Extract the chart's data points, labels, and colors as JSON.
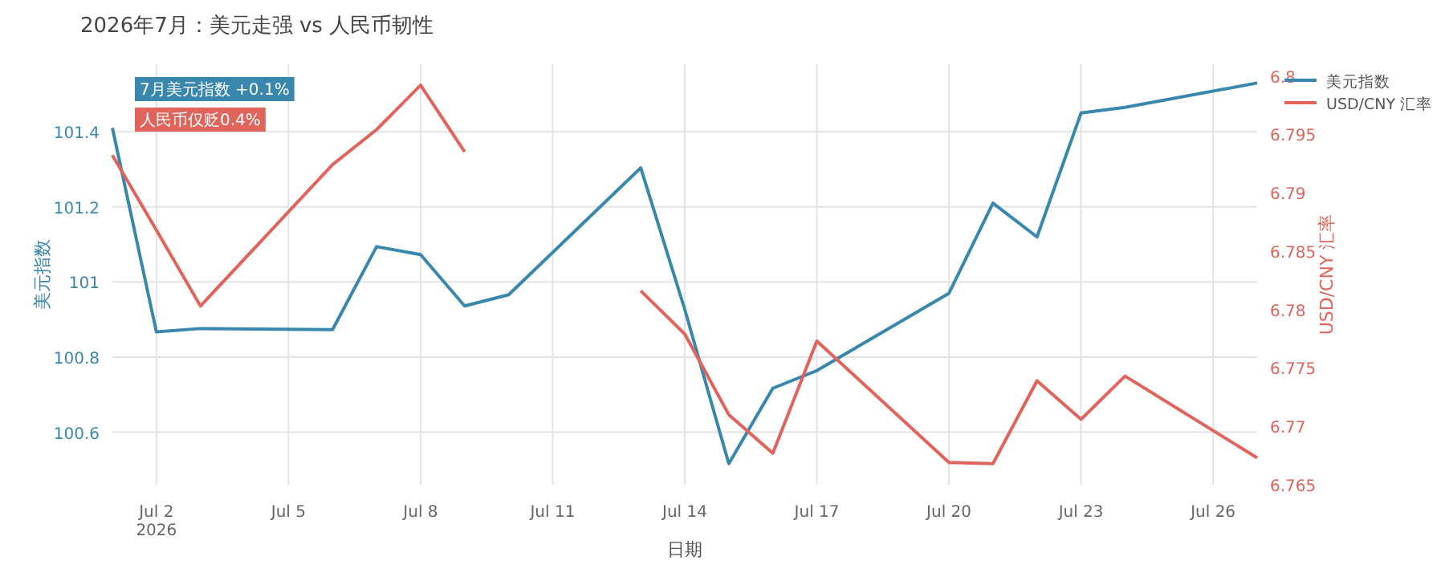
{
  "chart_data": {
    "type": "line",
    "title": "2026年7月：美元走强 vs 人民币韧性",
    "xlabel": "日期",
    "ylabel": "美元指数",
    "y2label": "USD/CNY 汇率",
    "x": [
      "2026-07-01",
      "2026-07-02",
      "2026-07-03",
      "2026-07-06",
      "2026-07-07",
      "2026-07-08",
      "2026-07-09",
      "2026-07-10",
      "2026-07-13",
      "2026-07-14",
      "2026-07-15",
      "2026-07-16",
      "2026-07-17",
      "2026-07-20",
      "2026-07-21",
      "2026-07-22",
      "2026-07-23",
      "2026-07-24",
      "2026-07-27"
    ],
    "series": [
      {
        "name": "美元指数",
        "color": "#3a87ad",
        "values": [
          101.41,
          100.867,
          100.876,
          100.873,
          101.094,
          101.073,
          100.936,
          100.966,
          101.304,
          100.927,
          100.516,
          100.717,
          100.764,
          100.97,
          101.21,
          101.12,
          101.45,
          101.465,
          101.53
        ]
      },
      {
        "name": "USD/CNY 汇率",
        "color": "#e0635c",
        "axis": "y2",
        "values": [
          6.7932,
          6.7868,
          6.7803,
          6.7924,
          6.7954,
          6.7992,
          6.7935,
          null,
          6.7816,
          6.7779,
          6.771,
          6.7677,
          6.7773,
          6.7669,
          6.7668,
          6.7739,
          6.7706,
          6.7743,
          6.7673
        ]
      }
    ],
    "xlim": [
      "2026-07-01",
      "2026-07-27"
    ],
    "xticks": [
      {
        "value": "2026-07-02",
        "label": "Jul 2\n2026"
      },
      {
        "value": "2026-07-05",
        "label": "Jul 5"
      },
      {
        "value": "2026-07-08",
        "label": "Jul 8"
      },
      {
        "value": "2026-07-11",
        "label": "Jul 11"
      },
      {
        "value": "2026-07-14",
        "label": "Jul 14"
      },
      {
        "value": "2026-07-17",
        "label": "Jul 17"
      },
      {
        "value": "2026-07-20",
        "label": "Jul 20"
      },
      {
        "value": "2026-07-23",
        "label": "Jul 23"
      },
      {
        "value": "2026-07-26",
        "label": "Jul 26"
      }
    ],
    "ylim": [
      100.46,
      101.58
    ],
    "yticks": [
      100.6,
      100.8,
      101,
      101.2,
      101.4
    ],
    "y2lim": [
      6.765,
      6.801
    ],
    "y2ticks": [
      6.765,
      6.77,
      6.775,
      6.78,
      6.785,
      6.79,
      6.795,
      6.8
    ],
    "annotations": [
      "7月美元指数 +0.1%",
      "人民币仅贬0.4%"
    ],
    "grid": true,
    "legend": "top right",
    "line_style": "solid",
    "marker": "none"
  }
}
